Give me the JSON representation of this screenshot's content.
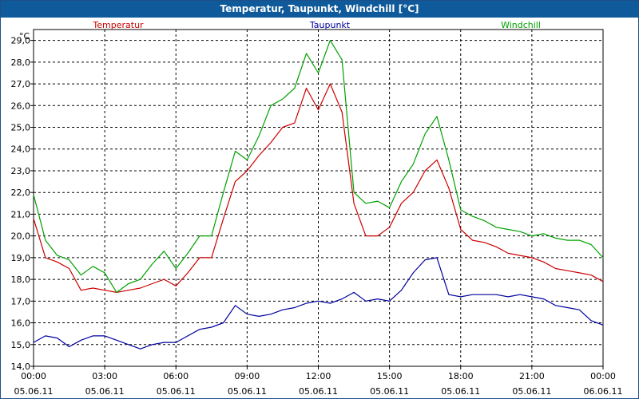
{
  "chart_data": {
    "type": "line",
    "title": "Temperatur, Taupunkt, Windchill [°C]",
    "ylabel": "°C",
    "ylim": [
      14.0,
      29.5
    ],
    "yticks": [
      "14,0",
      "15,0",
      "16,0",
      "17,0",
      "18,0",
      "19,0",
      "20,0",
      "21,0",
      "22,0",
      "23,0",
      "24,0",
      "25,0",
      "26,0",
      "27,0",
      "28,0",
      "29,0"
    ],
    "xlim": [
      0,
      24
    ],
    "x_ticks": [
      {
        "time": "00:00",
        "date": "05.06.11"
      },
      {
        "time": "03:00",
        "date": "05.06.11"
      },
      {
        "time": "06:00",
        "date": "05.06.11"
      },
      {
        "time": "09:00",
        "date": "05.06.11"
      },
      {
        "time": "12:00",
        "date": "05.06.11"
      },
      {
        "time": "15:00",
        "date": "05.06.11"
      },
      {
        "time": "18:00",
        "date": "05.06.11"
      },
      {
        "time": "21:00",
        "date": "05.06.11"
      },
      {
        "time": "00:00",
        "date": "06.06.11"
      }
    ],
    "grid": true,
    "series": [
      {
        "name": "Temperatur",
        "color": "#cc0000",
        "x": [
          0,
          0.5,
          1,
          1.5,
          2,
          2.5,
          3,
          3.5,
          4,
          4.5,
          5,
          5.5,
          6,
          6.5,
          7,
          7.5,
          8,
          8.5,
          9,
          9.5,
          10,
          10.5,
          11,
          11.5,
          12,
          12.5,
          13,
          13.5,
          14,
          14.5,
          15,
          15.5,
          16,
          16.5,
          17,
          17.5,
          18,
          18.5,
          19,
          19.5,
          20,
          20.5,
          21,
          21.5,
          22,
          22.5,
          23,
          23.5,
          24
        ],
        "values": [
          20.8,
          19.0,
          18.8,
          18.5,
          17.5,
          17.6,
          17.5,
          17.4,
          17.5,
          17.6,
          17.8,
          18.0,
          17.7,
          18.3,
          19.0,
          19.0,
          20.8,
          22.5,
          23.0,
          23.7,
          24.3,
          25.0,
          25.2,
          26.8,
          25.8,
          27.0,
          25.7,
          21.5,
          20.0,
          20.0,
          20.4,
          21.5,
          22.0,
          23.0,
          23.5,
          22.2,
          20.3,
          19.8,
          19.7,
          19.5,
          19.2,
          19.1,
          19.0,
          18.8,
          18.5,
          18.4,
          18.3,
          18.2,
          17.9
        ]
      },
      {
        "name": "Taupunkt",
        "color": "#00009e",
        "x": [
          0,
          0.5,
          1,
          1.5,
          2,
          2.5,
          3,
          3.5,
          4,
          4.5,
          5,
          5.5,
          6,
          6.5,
          7,
          7.5,
          8,
          8.5,
          9,
          9.5,
          10,
          10.5,
          11,
          11.5,
          12,
          12.5,
          13,
          13.5,
          14,
          14.5,
          15,
          15.5,
          16,
          16.5,
          17,
          17.5,
          18,
          18.5,
          19,
          19.5,
          20,
          20.5,
          21,
          21.5,
          22,
          22.5,
          23,
          23.5,
          24
        ],
        "values": [
          15.1,
          15.4,
          15.3,
          14.9,
          15.2,
          15.4,
          15.4,
          15.2,
          15.0,
          14.8,
          15.0,
          15.1,
          15.1,
          15.4,
          15.7,
          15.8,
          16.0,
          16.8,
          16.4,
          16.3,
          16.4,
          16.6,
          16.7,
          16.9,
          17.0,
          16.9,
          17.1,
          17.4,
          17.0,
          17.1,
          17.0,
          17.5,
          18.3,
          18.9,
          19.0,
          17.3,
          17.2,
          17.3,
          17.3,
          17.3,
          17.2,
          17.3,
          17.2,
          17.1,
          16.8,
          16.7,
          16.6,
          16.1,
          15.9
        ]
      },
      {
        "name": "Windchill",
        "color": "#00a000",
        "x": [
          0,
          0.5,
          1,
          1.5,
          2,
          2.5,
          3,
          3.5,
          4,
          4.5,
          5,
          5.5,
          6,
          6.5,
          7,
          7.5,
          8,
          8.5,
          9,
          9.5,
          10,
          10.5,
          11,
          11.5,
          12,
          12.5,
          13,
          13.5,
          14,
          14.5,
          15,
          15.5,
          16,
          16.5,
          17,
          17.5,
          18,
          18.5,
          19,
          19.5,
          20,
          20.5,
          21,
          21.5,
          22,
          22.5,
          23,
          23.5,
          24
        ],
        "values": [
          21.9,
          19.8,
          19.1,
          18.9,
          18.2,
          18.6,
          18.3,
          17.4,
          17.8,
          18.0,
          18.7,
          19.3,
          18.5,
          19.2,
          20.0,
          20.0,
          22.0,
          23.9,
          23.5,
          24.6,
          26.0,
          26.3,
          26.8,
          28.4,
          27.5,
          29.0,
          28.1,
          22.0,
          21.5,
          21.6,
          21.3,
          22.5,
          23.3,
          24.7,
          25.5,
          23.5,
          21.2,
          20.9,
          20.7,
          20.4,
          20.3,
          20.2,
          20.0,
          20.1,
          19.9,
          19.8,
          19.8,
          19.6,
          19.0
        ]
      }
    ]
  }
}
